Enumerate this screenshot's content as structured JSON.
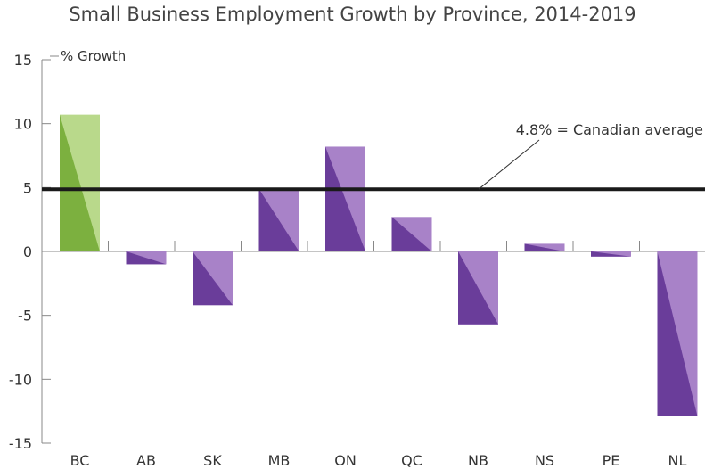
{
  "chart_data": {
    "type": "bar",
    "title": "Small Business Employment Growth by Province, 2014-2019",
    "ylabel": "% Growth",
    "xlabel": "",
    "categories": [
      "BC",
      "AB",
      "SK",
      "MB",
      "ON",
      "QC",
      "NB",
      "NS",
      "PE",
      "NL"
    ],
    "values": [
      10.7,
      -1.0,
      -4.2,
      4.9,
      8.2,
      2.7,
      -5.7,
      0.6,
      -0.4,
      -12.9
    ],
    "ylim": [
      -15,
      15
    ],
    "yticks": [
      {
        "value": 15,
        "label": "15"
      },
      {
        "value": 10,
        "label": "10"
      },
      {
        "value": 5,
        "label": "5"
      },
      {
        "value": 0,
        "label": "0"
      },
      {
        "value": -5,
        "label": "-5"
      },
      {
        "value": -10,
        "label": "-10"
      },
      {
        "value": -15,
        "label": "-15"
      }
    ],
    "reference_line": {
      "value": 4.8,
      "label": "4.8% = Canadian average"
    },
    "highlight_category": "BC",
    "colors": {
      "highlight_dark": "#7cb03f",
      "highlight_light": "#b9d98b",
      "bar_dark": "#6a3d9a",
      "bar_light": "#a882c8",
      "reference_line": "#1a1a1a",
      "axis": "#888888"
    },
    "grid": false
  }
}
